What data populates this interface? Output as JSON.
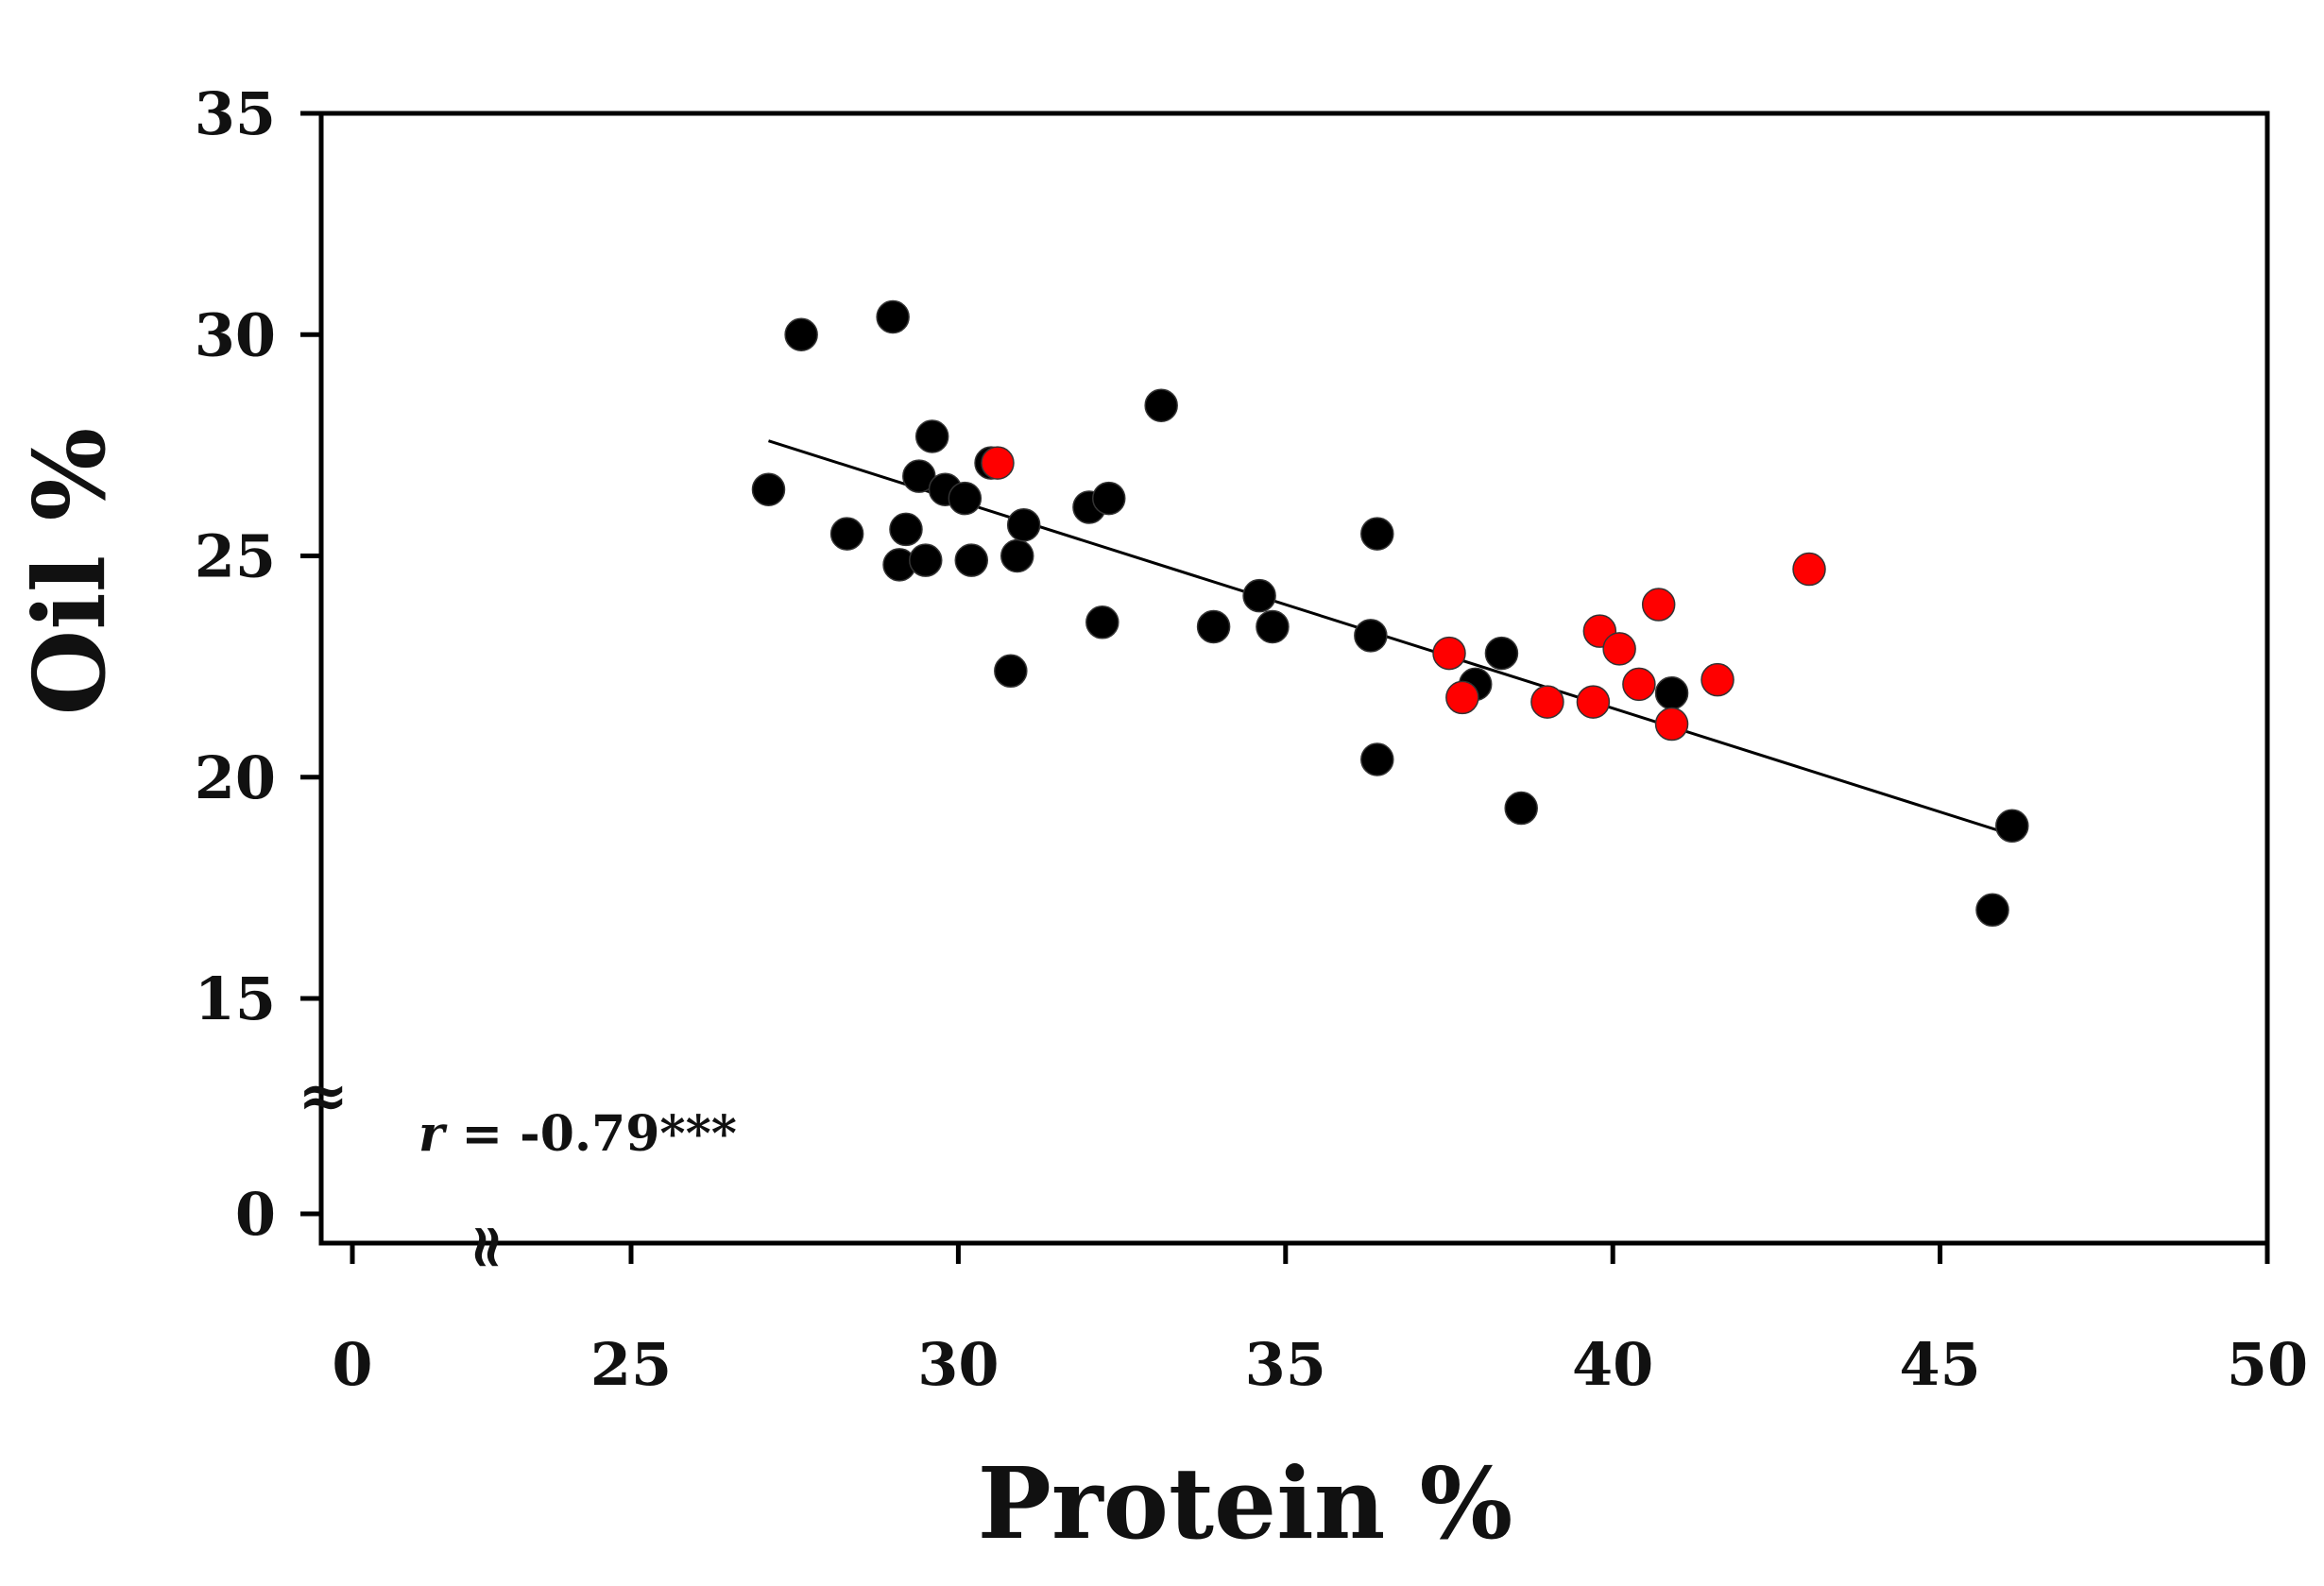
{
  "chart_data": {
    "type": "scatter",
    "xlabel": "Protein %",
    "ylabel": "Oil %",
    "xlim": [
      23,
      50
    ],
    "ylim": [
      10,
      35
    ],
    "axis_break": true,
    "break_symbol": "≈",
    "x_break_symbol": "≈",
    "xticks": [
      {
        "value": 0,
        "label": "0"
      },
      {
        "value": 25,
        "label": "25"
      },
      {
        "value": 30,
        "label": "30"
      },
      {
        "value": 35,
        "label": "35"
      },
      {
        "value": 40,
        "label": "40"
      },
      {
        "value": 45,
        "label": "45"
      },
      {
        "value": 50,
        "label": "50"
      }
    ],
    "yticks": [
      {
        "value": 0,
        "label": "0"
      },
      {
        "value": 15,
        "label": "15"
      },
      {
        "value": 20,
        "label": "20"
      },
      {
        "value": 25,
        "label": "25"
      },
      {
        "value": 30,
        "label": "30"
      },
      {
        "value": 35,
        "label": "35"
      }
    ],
    "annotation": {
      "r_symbol": "r",
      "r_text": " = -0.79***"
    },
    "trendline": {
      "x": [
        27.1,
        46.1
      ],
      "y": [
        27.6,
        18.7
      ]
    },
    "series": [
      {
        "color": "#000000",
        "points": [
          [
            27.1,
            26.5
          ],
          [
            27.6,
            30.0
          ],
          [
            28.3,
            25.5
          ],
          [
            29.0,
            30.4
          ],
          [
            29.2,
            25.6
          ],
          [
            29.1,
            24.8
          ],
          [
            29.4,
            26.8
          ],
          [
            29.5,
            24.9
          ],
          [
            29.6,
            27.7
          ],
          [
            29.8,
            26.5
          ],
          [
            30.1,
            26.3
          ],
          [
            30.2,
            24.9
          ],
          [
            30.5,
            27.1
          ],
          [
            30.8,
            22.4
          ],
          [
            30.9,
            25.0
          ],
          [
            31.0,
            25.7
          ],
          [
            32.0,
            26.1
          ],
          [
            32.3,
            26.3
          ],
          [
            32.2,
            23.5
          ],
          [
            33.1,
            28.4
          ],
          [
            33.9,
            23.4
          ],
          [
            34.6,
            24.1
          ],
          [
            34.8,
            23.4
          ],
          [
            36.3,
            23.2
          ],
          [
            36.4,
            25.5
          ],
          [
            36.4,
            20.4
          ],
          [
            37.9,
            22.1
          ],
          [
            38.3,
            22.8
          ],
          [
            38.6,
            19.3
          ],
          [
            40.9,
            21.9
          ],
          [
            45.8,
            17.0
          ],
          [
            46.1,
            18.9
          ]
        ]
      },
      {
        "color": "#ff0000",
        "points": [
          [
            30.6,
            27.1
          ],
          [
            37.5,
            22.8
          ],
          [
            37.7,
            21.8
          ],
          [
            39.0,
            21.7
          ],
          [
            39.7,
            21.7
          ],
          [
            39.8,
            23.3
          ],
          [
            40.1,
            22.9
          ],
          [
            40.4,
            22.1
          ],
          [
            40.7,
            23.9
          ],
          [
            40.9,
            21.2
          ],
          [
            41.6,
            22.2
          ],
          [
            43.0,
            24.7
          ]
        ]
      }
    ]
  }
}
